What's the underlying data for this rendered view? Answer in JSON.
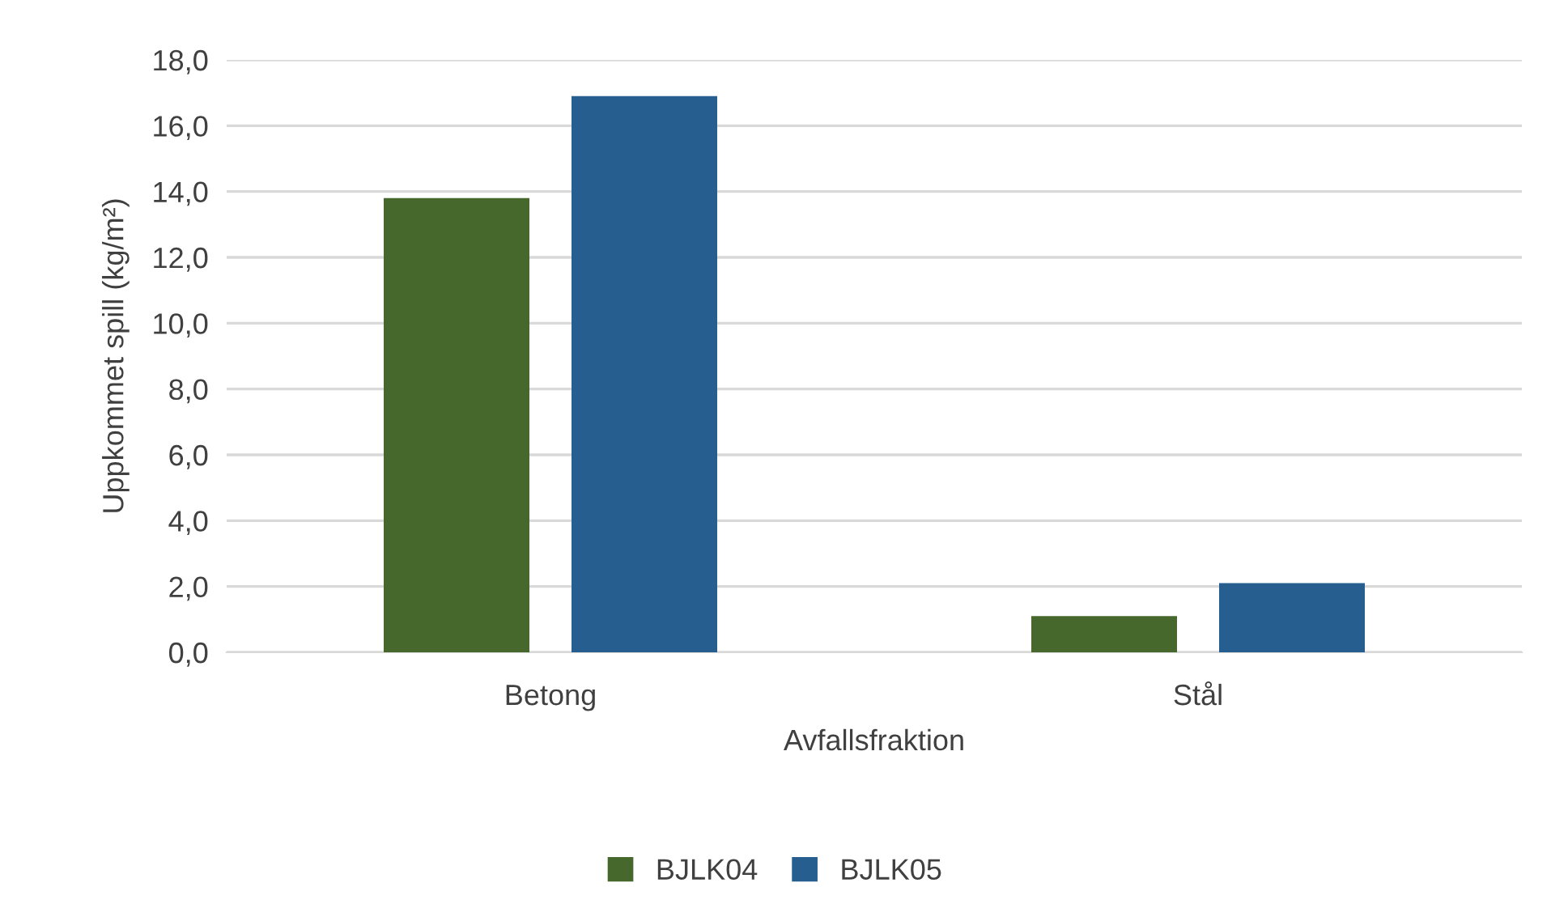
{
  "chart_data": {
    "type": "bar",
    "categories": [
      "Betong",
      "Stål"
    ],
    "series": [
      {
        "name": "BJLK04",
        "color": "#46682c",
        "values": [
          13.8,
          1.1
        ]
      },
      {
        "name": "BJLK05",
        "color": "#255e8f",
        "values": [
          16.9,
          2.1
        ]
      }
    ],
    "xlabel": "Avfallsfraktion",
    "ylabel": "Uppkommet spill (kg/m²)",
    "ylim": [
      0,
      18
    ],
    "yticks": [
      {
        "value": 0,
        "label": "0,0"
      },
      {
        "value": 2,
        "label": "2,0"
      },
      {
        "value": 4,
        "label": "4,0"
      },
      {
        "value": 6,
        "label": "6,0"
      },
      {
        "value": 8,
        "label": "8,0"
      },
      {
        "value": 10,
        "label": "10,0"
      },
      {
        "value": 12,
        "label": "12,0"
      },
      {
        "value": 14,
        "label": "14,0"
      },
      {
        "value": 16,
        "label": "16,0"
      },
      {
        "value": 18,
        "label": "18,0"
      }
    ],
    "grid": "y",
    "legend": "bottom"
  }
}
